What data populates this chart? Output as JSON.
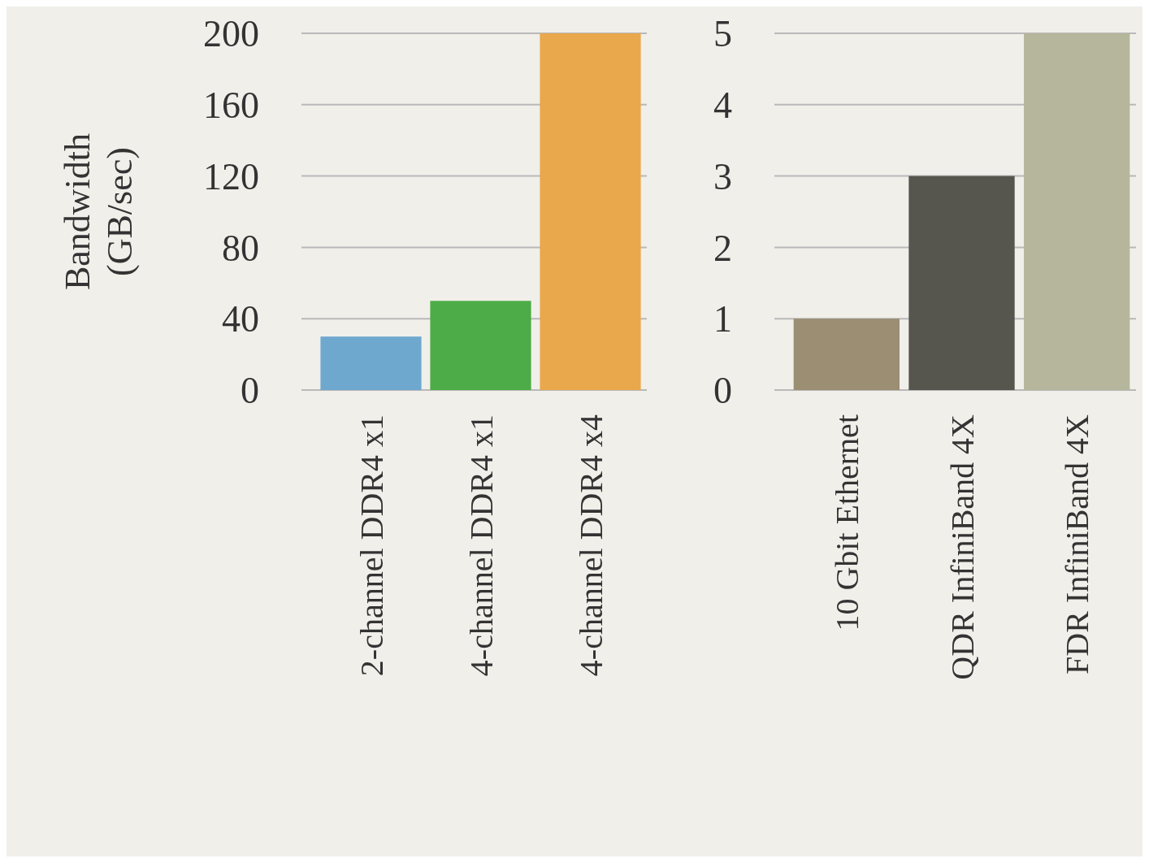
{
  "chart_data": [
    {
      "type": "bar",
      "ylabel": "Bandwidth (GB/sec)",
      "categories": [
        "2-channel DDR4 x1",
        "4-channel DDR4 x1",
        "4-channel DDR4 x4"
      ],
      "values": [
        30,
        50,
        200
      ],
      "colors": [
        "#6fa8cf",
        "#4dac47",
        "#e9a84c"
      ],
      "ylim": [
        0,
        200
      ],
      "yticks": [
        0,
        40,
        80,
        120,
        160,
        200
      ],
      "grid": "y"
    },
    {
      "type": "bar",
      "categories": [
        "10 Gbit Ethernet",
        "QDR InfiniBand 4X",
        "FDR InfiniBand 4X"
      ],
      "values": [
        1,
        3,
        5
      ],
      "colors": [
        "#9b8e72",
        "#56564f",
        "#b5b69b"
      ],
      "ylim": [
        0,
        5
      ],
      "yticks": [
        0,
        1,
        2,
        3,
        4,
        5
      ],
      "grid": "y"
    }
  ]
}
